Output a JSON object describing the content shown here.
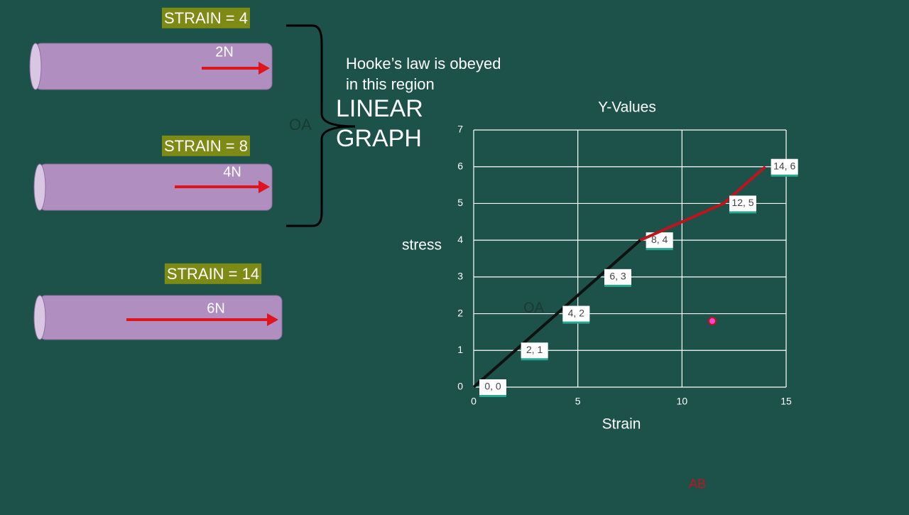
{
  "slide": {
    "strains": [
      "STRAIN = 4",
      "STRAIN = 8",
      "STRAIN = 14"
    ],
    "forces": [
      "2N",
      "4N",
      "6N"
    ],
    "bracket_label": "OA",
    "note": [
      "Hooke’s law is obeyed",
      "in this region"
    ],
    "heading": [
      "LINEAR",
      "GRAPH"
    ]
  },
  "chart_data": {
    "type": "line",
    "title": "Y-Values",
    "x_label": "Strain",
    "y_label": "stress",
    "xlim": [
      0,
      15
    ],
    "xticks": [
      0,
      5,
      10,
      15
    ],
    "ylim": [
      0,
      7
    ],
    "yticks": [
      0,
      1,
      2,
      3,
      4,
      5,
      6,
      7
    ],
    "grid": true,
    "series": [
      {
        "color": "#111111",
        "x": [
          0,
          2,
          4,
          6,
          8
        ],
        "values": [
          0,
          1,
          2,
          3,
          4
        ],
        "value_labels": [
          "0, 0",
          "2, 1",
          "4, 2",
          "6, 3",
          "8, 4"
        ]
      },
      {
        "color": "#c0141c",
        "x": [
          8,
          12,
          14
        ],
        "values": [
          4,
          5,
          6
        ],
        "value_labels": [
          null,
          "12, 5",
          "14, 6"
        ]
      }
    ],
    "annotations": [
      {
        "text": "OA",
        "color": "#1a3a33"
      },
      {
        "text": "AB",
        "color": "#c0141c"
      }
    ]
  }
}
